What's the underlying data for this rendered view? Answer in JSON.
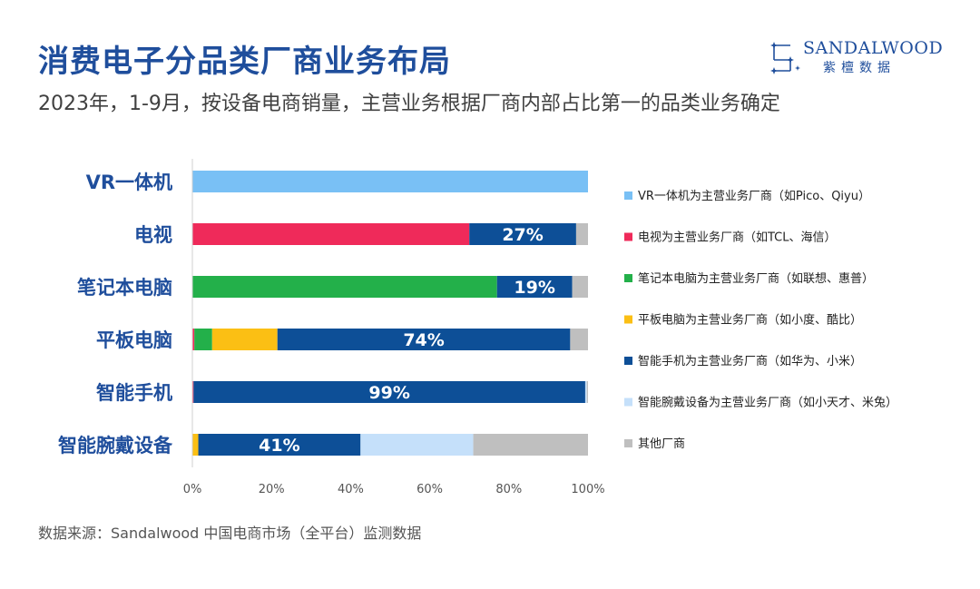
{
  "header": {
    "title": "消费电子分品类厂商业务布局",
    "subtitle": "2023年，1-9月，按设备电商销量，主营业务根据厂商内部占比第一的品类业务确定"
  },
  "logo": {
    "name_en": "SANDALWOOD",
    "name_cn": "紫檀数据",
    "color": "#1f4e9c"
  },
  "footer": {
    "source": "数据来源：Sandalwood 中国电商市场（全平台）监测数据"
  },
  "chart_data": {
    "type": "bar",
    "orientation": "horizontal",
    "stacked": true,
    "categories": [
      "VR一体机",
      "电视",
      "笔记本电脑",
      "平板电脑",
      "智能手机",
      "智能腕戴设备"
    ],
    "series": [
      {
        "name": "VR一体机为主营业务厂商（如Pico、Qiyu）",
        "color": "#79c0f5",
        "values": [
          100,
          0,
          0,
          0,
          0,
          0
        ]
      },
      {
        "name": "电视为主营业务厂商（如TCL、海信）",
        "color": "#ef2a5a",
        "values": [
          0,
          70,
          0,
          0.5,
          0.3,
          0
        ]
      },
      {
        "name": "笔记本电脑为主营业务厂商（如联想、惠普）",
        "color": "#23b04a",
        "values": [
          0,
          0,
          77,
          4.5,
          0,
          0
        ]
      },
      {
        "name": "平板电脑为主营业务厂商（如小度、酷比）",
        "color": "#fbbf14",
        "values": [
          0,
          0,
          0,
          16.5,
          0,
          1.5
        ]
      },
      {
        "name": "智能手机为主营业务厂商（如华为、小米）",
        "color": "#0d4f97",
        "values": [
          0,
          27,
          19,
          74,
          99,
          41
        ]
      },
      {
        "name": "智能腕戴设备为主营业务厂商（如小天才、米兔）",
        "color": "#c5e0fa",
        "values": [
          0,
          0,
          0,
          0,
          0.4,
          28.5
        ]
      },
      {
        "name": "其他厂商",
        "color": "#bfbfbf",
        "values": [
          0,
          3,
          4,
          4.5,
          0.3,
          29
        ]
      }
    ],
    "data_labels": [
      {
        "category": "电视",
        "series": "智能手机为主营业务厂商（如华为、小米）",
        "text": "27%"
      },
      {
        "category": "笔记本电脑",
        "series": "智能手机为主营业务厂商（如华为、小米）",
        "text": "19%"
      },
      {
        "category": "平板电脑",
        "series": "智能手机为主营业务厂商（如华为、小米）",
        "text": "74%"
      },
      {
        "category": "智能手机",
        "series": "智能手机为主营业务厂商（如华为、小米）",
        "text": "99%"
      },
      {
        "category": "智能腕戴设备",
        "series": "智能手机为主营业务厂商（如华为、小米）",
        "text": "41%"
      }
    ],
    "x_ticks": [
      "0%",
      "20%",
      "40%",
      "60%",
      "80%",
      "100%"
    ],
    "xlim": [
      0,
      100
    ],
    "grid": false,
    "legend_position": "right"
  }
}
